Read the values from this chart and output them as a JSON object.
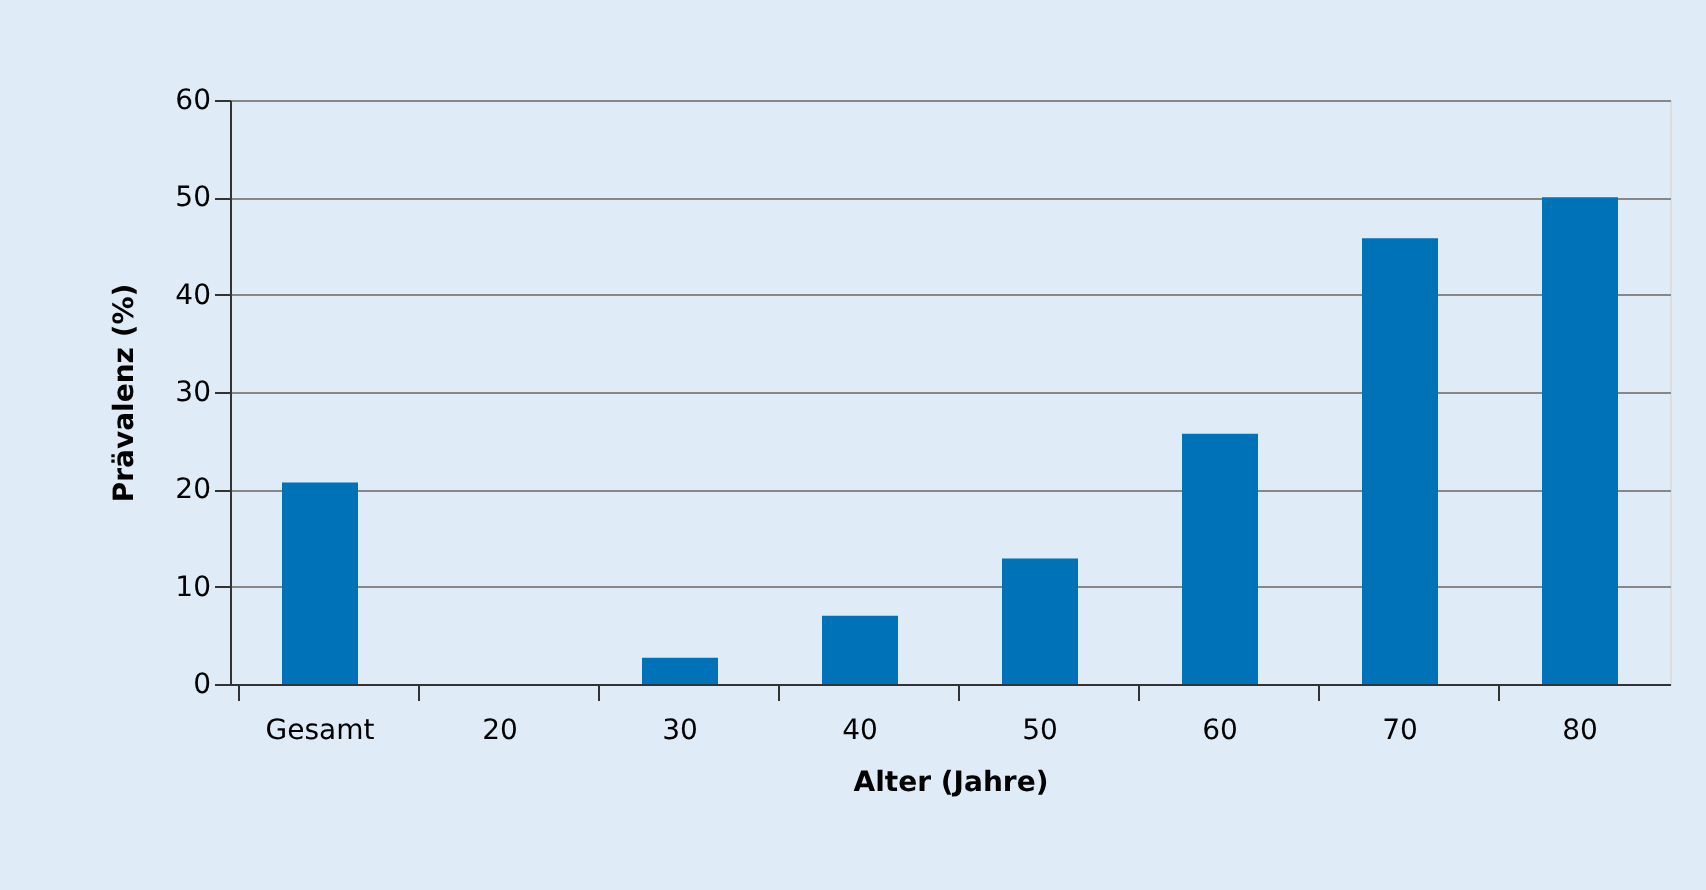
{
  "chart_data": {
    "type": "bar",
    "xlabel": "Alter (Jahre)",
    "ylabel": "Prävalenz (%)",
    "categories": [
      "Gesamt",
      "20",
      "30",
      "40",
      "50",
      "60",
      "70",
      "80"
    ],
    "values": [
      20.7,
      0,
      2.7,
      7.0,
      12.9,
      25.7,
      45.8,
      50
    ],
    "color": "#0072b7",
    "ylim": [
      0,
      60
    ],
    "yticks": [
      0,
      10,
      20,
      30,
      40,
      50,
      60
    ],
    "grid": "y"
  }
}
